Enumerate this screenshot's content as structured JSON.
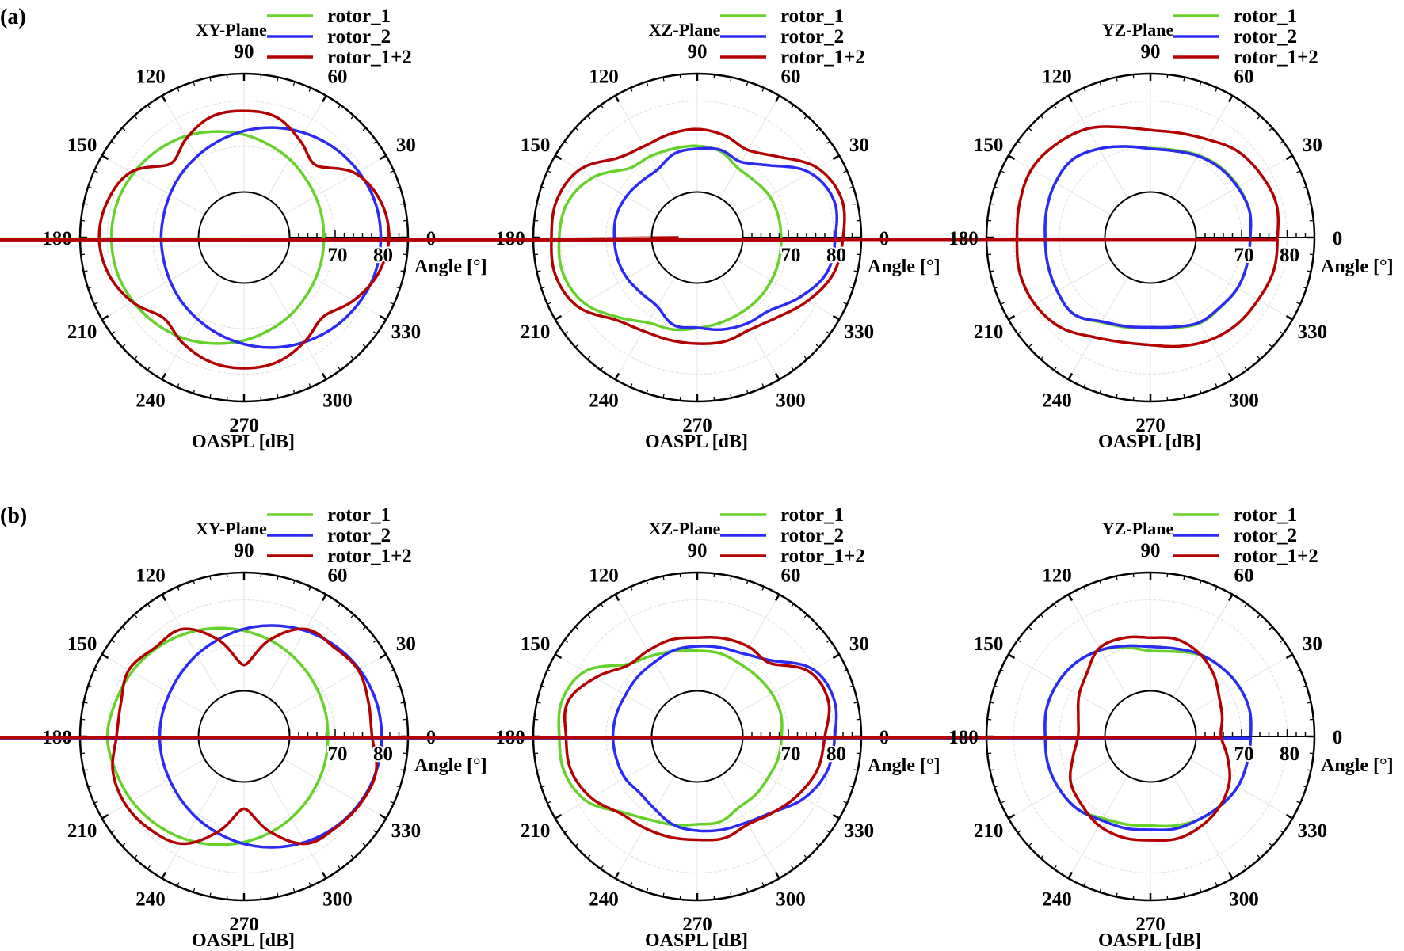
{
  "group_labels": [
    "(a)",
    "(b)"
  ],
  "colors": {
    "rotor_1": "#66d12a",
    "rotor_2": "#2b2bf5",
    "rotor_1+2": "#b30000"
  },
  "chart_data": [
    {
      "type": "line",
      "projection": "polar",
      "group": "(a)",
      "title": "XY-Plane",
      "angle_label": "Angle [°]",
      "radius_label": "OASPL [dB]",
      "radius_ticks": [
        "70",
        "80"
      ],
      "rlim": [
        50,
        86
      ],
      "inner_circle_db": 60,
      "angle_ticks": [
        "0",
        "30",
        "60",
        "90",
        "120",
        "150",
        "180",
        "210",
        "240",
        "270",
        "300",
        "330"
      ],
      "legend": [
        "rotor_1",
        "rotor_2",
        "rotor_1+2"
      ],
      "legend_position": "top-right",
      "angles_deg": [
        0,
        15,
        30,
        45,
        60,
        75,
        90,
        105,
        120,
        135,
        150,
        165,
        180,
        195,
        210,
        225,
        240,
        255,
        270,
        285,
        300,
        315,
        330,
        345
      ],
      "series": [
        {
          "name": "rotor_1",
          "values": [
            67.5,
            67.7,
            68.1,
            68.8,
            69.9,
            71.1,
            72.6,
            74.1,
            75.7,
            77.0,
            78.1,
            78.9,
            79.1,
            78.9,
            78.1,
            77.0,
            75.7,
            74.1,
            72.6,
            71.1,
            69.9,
            68.8,
            68.1,
            67.7
          ]
        },
        {
          "name": "rotor_2",
          "values": [
            80.0,
            79.8,
            79.0,
            77.9,
            76.5,
            75.0,
            73.4,
            71.9,
            70.6,
            69.6,
            68.8,
            68.3,
            68.2,
            68.3,
            68.8,
            69.6,
            70.6,
            71.9,
            73.4,
            75.0,
            76.5,
            77.9,
            79.0,
            79.8
          ]
        },
        {
          "name": "rotor_1+2",
          "values": [
            81.8,
            81.0,
            78.2,
            72.4,
            74.6,
            77.4,
            77.8,
            77.5,
            75.2,
            72.9,
            78.7,
            81.0,
            81.8,
            80.8,
            78.3,
            75.0,
            76.8,
            78.3,
            78.7,
            78.3,
            76.5,
            74.6,
            77.7,
            80.5
          ]
        }
      ]
    },
    {
      "type": "line",
      "projection": "polar",
      "group": "(a)",
      "title": "XZ-Plane",
      "angle_label": "Angle [°]",
      "radius_label": "OASPL [dB]",
      "radius_ticks": [
        "70",
        "80"
      ],
      "rlim": [
        50,
        86
      ],
      "inner_circle_db": 60,
      "angle_ticks": [
        "0",
        "30",
        "60",
        "90",
        "120",
        "150",
        "180",
        "210",
        "240",
        "270",
        "300",
        "330"
      ],
      "legend": [
        "rotor_1",
        "rotor_2",
        "rotor_1+2"
      ],
      "legend_position": "top-right",
      "angles_deg": [
        0,
        15,
        30,
        45,
        60,
        75,
        90,
        105,
        120,
        135,
        150,
        165,
        180,
        195,
        210,
        225,
        240,
        255,
        270,
        285,
        300,
        315,
        330,
        345
      ],
      "series": [
        {
          "name": "rotor_1",
          "values": [
            68.4,
            68.4,
            68.3,
            67.7,
            67.7,
            69.6,
            70.1,
            70.2,
            70.6,
            71.4,
            76.4,
            79.5,
            80.3,
            80.5,
            78.7,
            74.7,
            71.6,
            70.9,
            69.9,
            69.4,
            69.1,
            69.0,
            68.8,
            68.6
          ]
        },
        {
          "name": "rotor_2",
          "values": [
            80.3,
            81.1,
            78.5,
            72.4,
            69.2,
            69.9,
            69.5,
            69.1,
            67.3,
            67.4,
            68.0,
            68.4,
            68.2,
            68.1,
            67.8,
            67.3,
            67.5,
            69.9,
            69.8,
            70.9,
            71.8,
            72.6,
            76.1,
            79.5
          ]
        },
        {
          "name": "rotor_1+2",
          "values": [
            82.0,
            82.8,
            80.5,
            75.1,
            72.2,
            73.2,
            73.8,
            73.5,
            73.2,
            74.7,
            79.8,
            81.9,
            82.0,
            82.2,
            80.3,
            75.5,
            73.7,
            73.3,
            73.3,
            73.6,
            73.3,
            74.8,
            77.9,
            80.9
          ]
        }
      ]
    },
    {
      "type": "line",
      "projection": "polar",
      "group": "(a)",
      "title": "YZ-Plane",
      "angle_label": "Angle [°]",
      "radius_label": "OASPL [dB]",
      "radius_ticks": [
        "70",
        "80"
      ],
      "rlim": [
        50,
        86
      ],
      "inner_circle_db": 60,
      "angle_ticks": [
        "0",
        "30",
        "60",
        "90",
        "120",
        "150",
        "180",
        "210",
        "240",
        "270",
        "300",
        "330"
      ],
      "legend": [
        "rotor_1",
        "rotor_2",
        "rotor_1+2"
      ],
      "legend_position": "top-right",
      "angles_deg": [
        0,
        15,
        30,
        45,
        60,
        75,
        90,
        105,
        120,
        135,
        150,
        165,
        180,
        195,
        210,
        225,
        240,
        255,
        270,
        285,
        300,
        315,
        330,
        345
      ],
      "series": [
        {
          "name": "rotor_1",
          "values": [
            71.9,
            72.5,
            72.3,
            71.8,
            70.9,
            69.9,
            69.6,
            70.7,
            72.5,
            74.2,
            74.1,
            73.6,
            73.1,
            73.3,
            73.6,
            73.8,
            71.5,
            70.4,
            69.9,
            70.5,
            71.7,
            71.7,
            72.1,
            72.0
          ]
        },
        {
          "name": "rotor_2",
          "values": [
            71.9,
            72.5,
            72.1,
            71.6,
            70.7,
            69.7,
            69.5,
            70.7,
            72.5,
            74.2,
            74.1,
            73.6,
            73.1,
            73.3,
            73.6,
            73.8,
            71.3,
            70.2,
            69.7,
            70.3,
            71.5,
            71.6,
            72.1,
            72.0
          ]
        },
        {
          "name": "rotor_1+2",
          "values": [
            77.9,
            78.6,
            77.9,
            76.9,
            74.9,
            73.8,
            73.6,
            75.1,
            77.6,
            79.1,
            80.1,
            79.7,
            79.3,
            79.7,
            79.3,
            77.9,
            75.2,
            73.8,
            73.6,
            74.7,
            76.0,
            76.9,
            77.3,
            78.0
          ]
        }
      ]
    },
    {
      "type": "line",
      "projection": "polar",
      "group": "(b)",
      "title": "XY-Plane",
      "angle_label": "Angle [°]",
      "radius_label": "OASPL [dB]",
      "radius_ticks": [
        "70",
        "80"
      ],
      "rlim": [
        50,
        86
      ],
      "inner_circle_db": 60,
      "angle_ticks": [
        "0",
        "30",
        "60",
        "90",
        "120",
        "150",
        "180",
        "210",
        "240",
        "270",
        "300",
        "330"
      ],
      "legend": [
        "rotor_1",
        "rotor_2",
        "rotor_1+2"
      ],
      "legend_position": "top-right",
      "angles_deg": [
        0,
        15,
        30,
        45,
        60,
        75,
        90,
        105,
        120,
        135,
        150,
        165,
        180,
        195,
        210,
        225,
        240,
        255,
        270,
        285,
        300,
        315,
        330,
        345
      ],
      "series": [
        {
          "name": "rotor_1",
          "values": [
            68.4,
            68.6,
            69.0,
            69.7,
            70.7,
            71.9,
            73.2,
            74.6,
            76.0,
            77.3,
            78.4,
            79.2,
            80.0,
            79.2,
            78.4,
            77.3,
            76.0,
            74.6,
            73.2,
            71.9,
            70.7,
            69.7,
            69.0,
            68.6
          ]
        },
        {
          "name": "rotor_2",
          "values": [
            80.2,
            80.0,
            79.3,
            78.2,
            76.8,
            75.2,
            73.6,
            72.0,
            70.7,
            69.6,
            68.9,
            68.6,
            68.5,
            68.6,
            68.9,
            69.6,
            70.7,
            72.0,
            73.6,
            75.2,
            76.8,
            78.2,
            79.3,
            80.0
          ]
        },
        {
          "name": "rotor_1+2",
          "values": [
            78.1,
            78.3,
            79.0,
            77.8,
            77.2,
            72.0,
            65.7,
            72.0,
            77.2,
            77.6,
            79.2,
            78.0,
            78.0,
            79.8,
            80.0,
            79.0,
            77.2,
            71.6,
            65.9,
            71.6,
            77.2,
            78.4,
            79.5,
            80.0
          ]
        }
      ]
    },
    {
      "type": "line",
      "projection": "polar",
      "group": "(b)",
      "title": "XZ-Plane",
      "angle_label": "Angle [°]",
      "radius_label": "OASPL [dB]",
      "radius_ticks": [
        "70",
        "80"
      ],
      "rlim": [
        50,
        86
      ],
      "inner_circle_db": 60,
      "angle_ticks": [
        "0",
        "30",
        "60",
        "90",
        "120",
        "150",
        "180",
        "210",
        "240",
        "270",
        "300",
        "330"
      ],
      "legend": [
        "rotor_1",
        "rotor_2",
        "rotor_1+2"
      ],
      "legend_position": "top-right",
      "angles_deg": [
        0,
        15,
        30,
        45,
        60,
        75,
        90,
        105,
        120,
        135,
        150,
        165,
        180,
        195,
        210,
        225,
        240,
        255,
        270,
        285,
        300,
        315,
        330,
        345
      ],
      "series": [
        {
          "name": "rotor_1",
          "values": [
            68.5,
            69.0,
            68.9,
            68.6,
            68.5,
            68.9,
            68.8,
            69.4,
            70.4,
            72.3,
            78.5,
            80.7,
            80.3,
            80.2,
            78.2,
            73.5,
            71.1,
            70.1,
            69.3,
            69.4,
            68.1,
            68.1,
            68.0,
            68.4
          ]
        },
        {
          "name": "rotor_2",
          "values": [
            80.2,
            81.1,
            79.4,
            73.5,
            70.9,
            70.2,
            69.8,
            69.6,
            68.8,
            68.5,
            68.2,
            68.4,
            68.5,
            68.4,
            68.3,
            67.7,
            68.5,
            70.1,
            70.7,
            71.2,
            71.8,
            73.5,
            77.1,
            79.5
          ]
        },
        {
          "name": "rotor_1+2",
          "values": [
            78.0,
            79.8,
            78.4,
            72.7,
            72.7,
            72.3,
            71.7,
            72.0,
            71.7,
            71.9,
            75.8,
            79.4,
            78.8,
            78.7,
            76.9,
            73.9,
            73.2,
            72.9,
            72.7,
            73.1,
            72.3,
            73.6,
            75.6,
            77.4
          ]
        }
      ]
    },
    {
      "type": "line",
      "projection": "polar",
      "group": "(b)",
      "title": "YZ-Plane",
      "angle_label": "Angle [°]",
      "radius_label": "OASPL [dB]",
      "radius_ticks": [
        "70",
        "80"
      ],
      "rlim": [
        50,
        86
      ],
      "inner_circle_db": 60,
      "angle_ticks": [
        "0",
        "30",
        "60",
        "90",
        "120",
        "150",
        "180",
        "210",
        "240",
        "270",
        "300",
        "330"
      ],
      "legend": [
        "rotor_1",
        "rotor_2",
        "rotor_1+2"
      ],
      "legend_position": "top-right",
      "angles_deg": [
        0,
        15,
        30,
        45,
        60,
        75,
        90,
        105,
        120,
        135,
        150,
        165,
        180,
        195,
        210,
        225,
        240,
        255,
        270,
        285,
        300,
        315,
        330,
        345
      ],
      "series": [
        {
          "name": "rotor_1",
          "values": [
            72.0,
            72.5,
            72.3,
            71.7,
            70.8,
            69.3,
            68.8,
            70.2,
            71.9,
            73.0,
            73.5,
            73.6,
            73.1,
            73.3,
            73.1,
            72.6,
            70.8,
            70.0,
            69.6,
            70.3,
            71.1,
            71.6,
            72.1,
            72.0
          ]
        },
        {
          "name": "rotor_2",
          "values": [
            72.0,
            72.5,
            72.3,
            71.7,
            71.0,
            70.0,
            69.7,
            70.6,
            71.9,
            73.0,
            73.5,
            73.6,
            73.1,
            73.3,
            73.1,
            72.6,
            71.3,
            70.9,
            70.5,
            71.0,
            71.1,
            71.6,
            72.1,
            72.0
          ]
        },
        {
          "name": "rotor_1+2",
          "values": [
            65.5,
            66.3,
            67.4,
            69.5,
            71.2,
            72.1,
            71.7,
            72.4,
            72.4,
            69.7,
            68.1,
            66.4,
            65.9,
            67.6,
            70.2,
            71.3,
            72.6,
            73.0,
            72.8,
            73.2,
            72.6,
            71.6,
            70.0,
            67.5
          ]
        }
      ]
    }
  ]
}
